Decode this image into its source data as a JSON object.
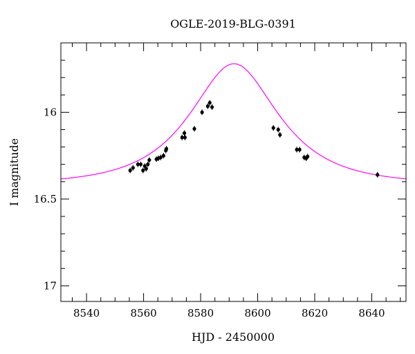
{
  "chart_data": {
    "type": "scatter",
    "title": "OGLE-2019-BLG-0391",
    "xlabel": "HJD - 2450000",
    "ylabel": "I magnitude",
    "xlim": [
      8531,
      8652
    ],
    "ylim": [
      17.09,
      15.6
    ],
    "y_inverted": true,
    "x_ticks": [
      8540,
      8560,
      8580,
      8600,
      8620,
      8640
    ],
    "y_ticks": [
      16,
      16.5,
      17
    ],
    "x_tick_labels": [
      "8540",
      "8560",
      "8580",
      "8600",
      "8620",
      "8640"
    ],
    "y_tick_labels": [
      "16",
      "16.5",
      "17"
    ],
    "grid": false,
    "model_curve": {
      "color": "#ff00ff",
      "t0": 8591.7,
      "u0": 0.595,
      "tE": 24.5,
      "I_base": 16.415
    },
    "points": {
      "color": "#000000",
      "x": [
        8555.3,
        8556.3,
        8558.0,
        8559.0,
        8559.8,
        8560.4,
        8560.9,
        8561.5,
        8562.0,
        8564.5,
        8565.2,
        8566.0,
        8567.0,
        8567.8,
        8568.0,
        8573.5,
        8574.3,
        8574.5,
        8577.8,
        8580.5,
        8582.5,
        8583.2,
        8584.0,
        8605.5,
        8607.2,
        8607.8,
        8613.7,
        8614.7,
        8616.3,
        8617.0,
        8617.5,
        8642.0
      ],
      "y": [
        16.335,
        16.32,
        16.3,
        16.3,
        16.335,
        16.31,
        16.325,
        16.3,
        16.275,
        16.27,
        16.265,
        16.26,
        16.25,
        16.22,
        16.21,
        16.145,
        16.12,
        16.145,
        16.095,
        16.0,
        15.965,
        15.945,
        15.97,
        16.09,
        16.1,
        16.13,
        16.215,
        16.215,
        16.26,
        16.265,
        16.255,
        16.36
      ]
    }
  }
}
